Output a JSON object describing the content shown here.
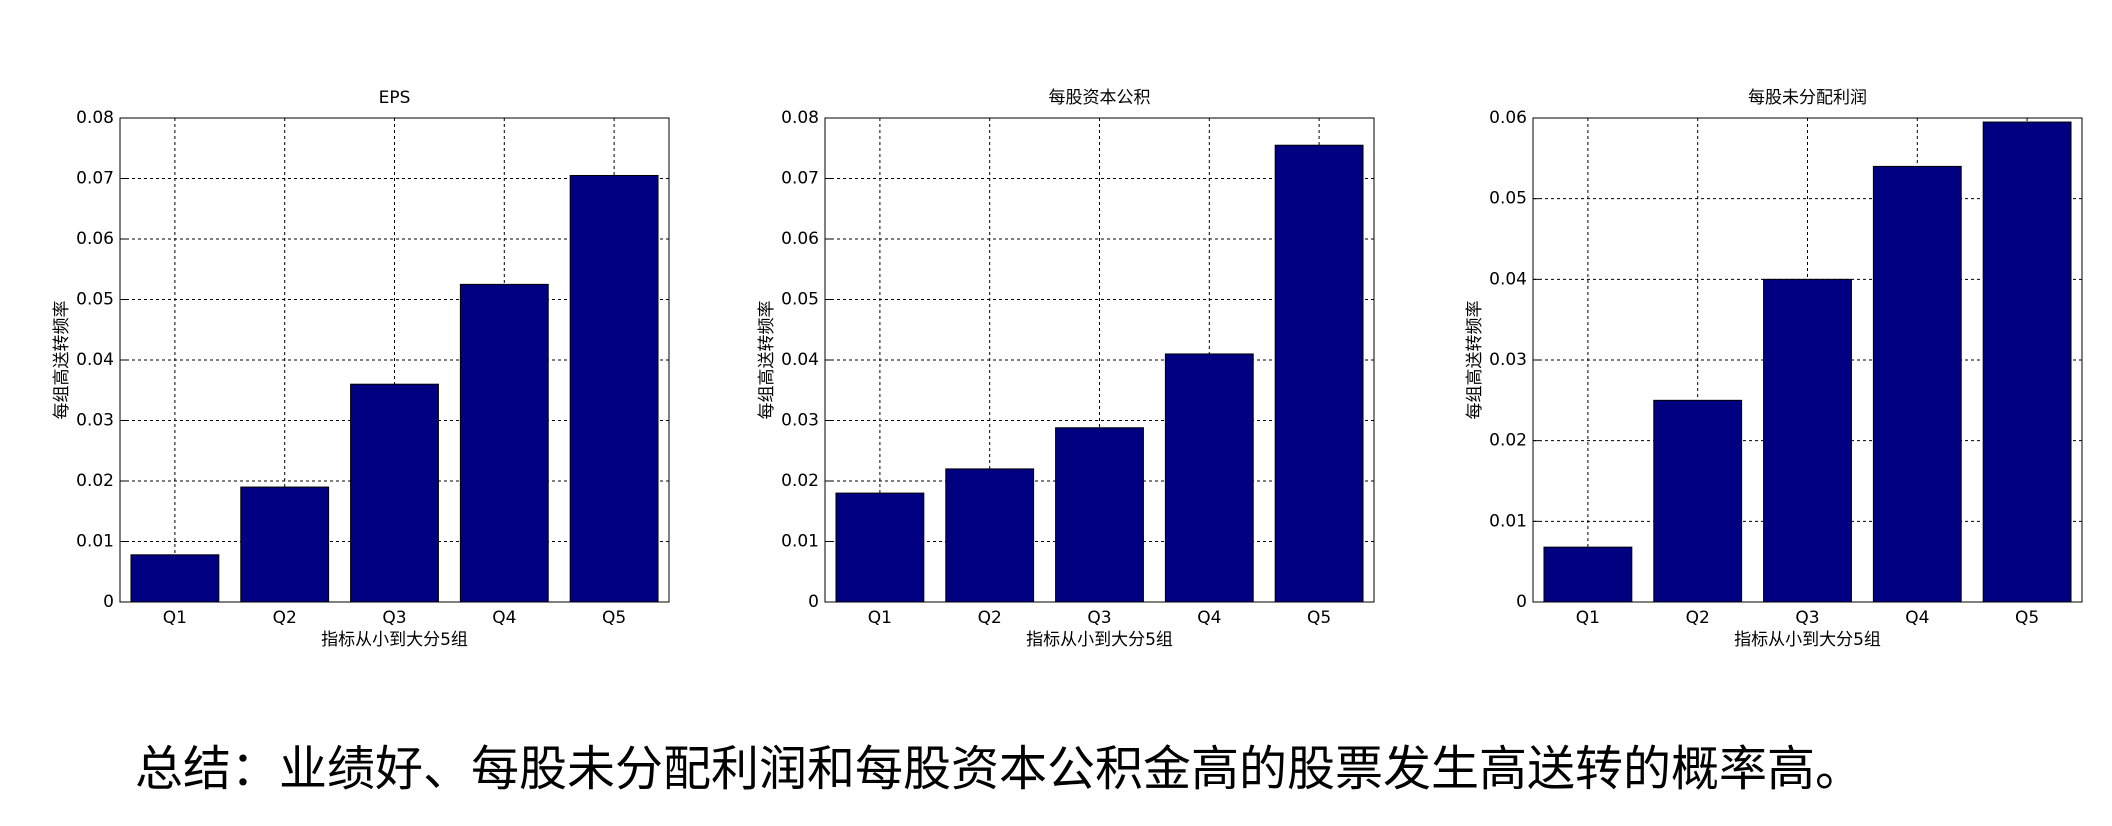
{
  "chart_data": [
    {
      "type": "bar",
      "title": "EPS",
      "x_label": "指标从小到大分5组",
      "y_label": "每组高送转频率",
      "categories": [
        "Q1",
        "Q2",
        "Q3",
        "Q4",
        "Q5"
      ],
      "values": [
        0.0078,
        0.019,
        0.036,
        0.0525,
        0.0705
      ],
      "color": "#000080",
      "ylim": [
        0,
        0.08
      ],
      "yticks": [
        0,
        0.01,
        0.02,
        0.03,
        0.04,
        0.05,
        0.06,
        0.07,
        0.08
      ],
      "grid": true
    },
    {
      "type": "bar",
      "title": "每股资本公积",
      "x_label": "指标从小到大分5组",
      "y_label": "每组高送转频率",
      "categories": [
        "Q1",
        "Q2",
        "Q3",
        "Q4",
        "Q5"
      ],
      "values": [
        0.018,
        0.022,
        0.0288,
        0.041,
        0.0755
      ],
      "color": "#000080",
      "ylim": [
        0,
        0.08
      ],
      "yticks": [
        0,
        0.01,
        0.02,
        0.03,
        0.04,
        0.05,
        0.06,
        0.07,
        0.08
      ],
      "grid": true
    },
    {
      "type": "bar",
      "title": "每股未分配利润",
      "x_label": "指标从小到大分5组",
      "y_label": "每组高送转频率",
      "categories": [
        "Q1",
        "Q2",
        "Q3",
        "Q4",
        "Q5"
      ],
      "values": [
        0.0068,
        0.025,
        0.04,
        0.054,
        0.0595
      ],
      "color": "#000080",
      "ylim": [
        0,
        0.06
      ],
      "yticks": [
        0,
        0.01,
        0.02,
        0.03,
        0.04,
        0.05,
        0.06
      ],
      "grid": true
    }
  ],
  "summary": "总结：业绩好、每股未分配利润和每股资本公积金高的股票发生高送转的概率高。"
}
